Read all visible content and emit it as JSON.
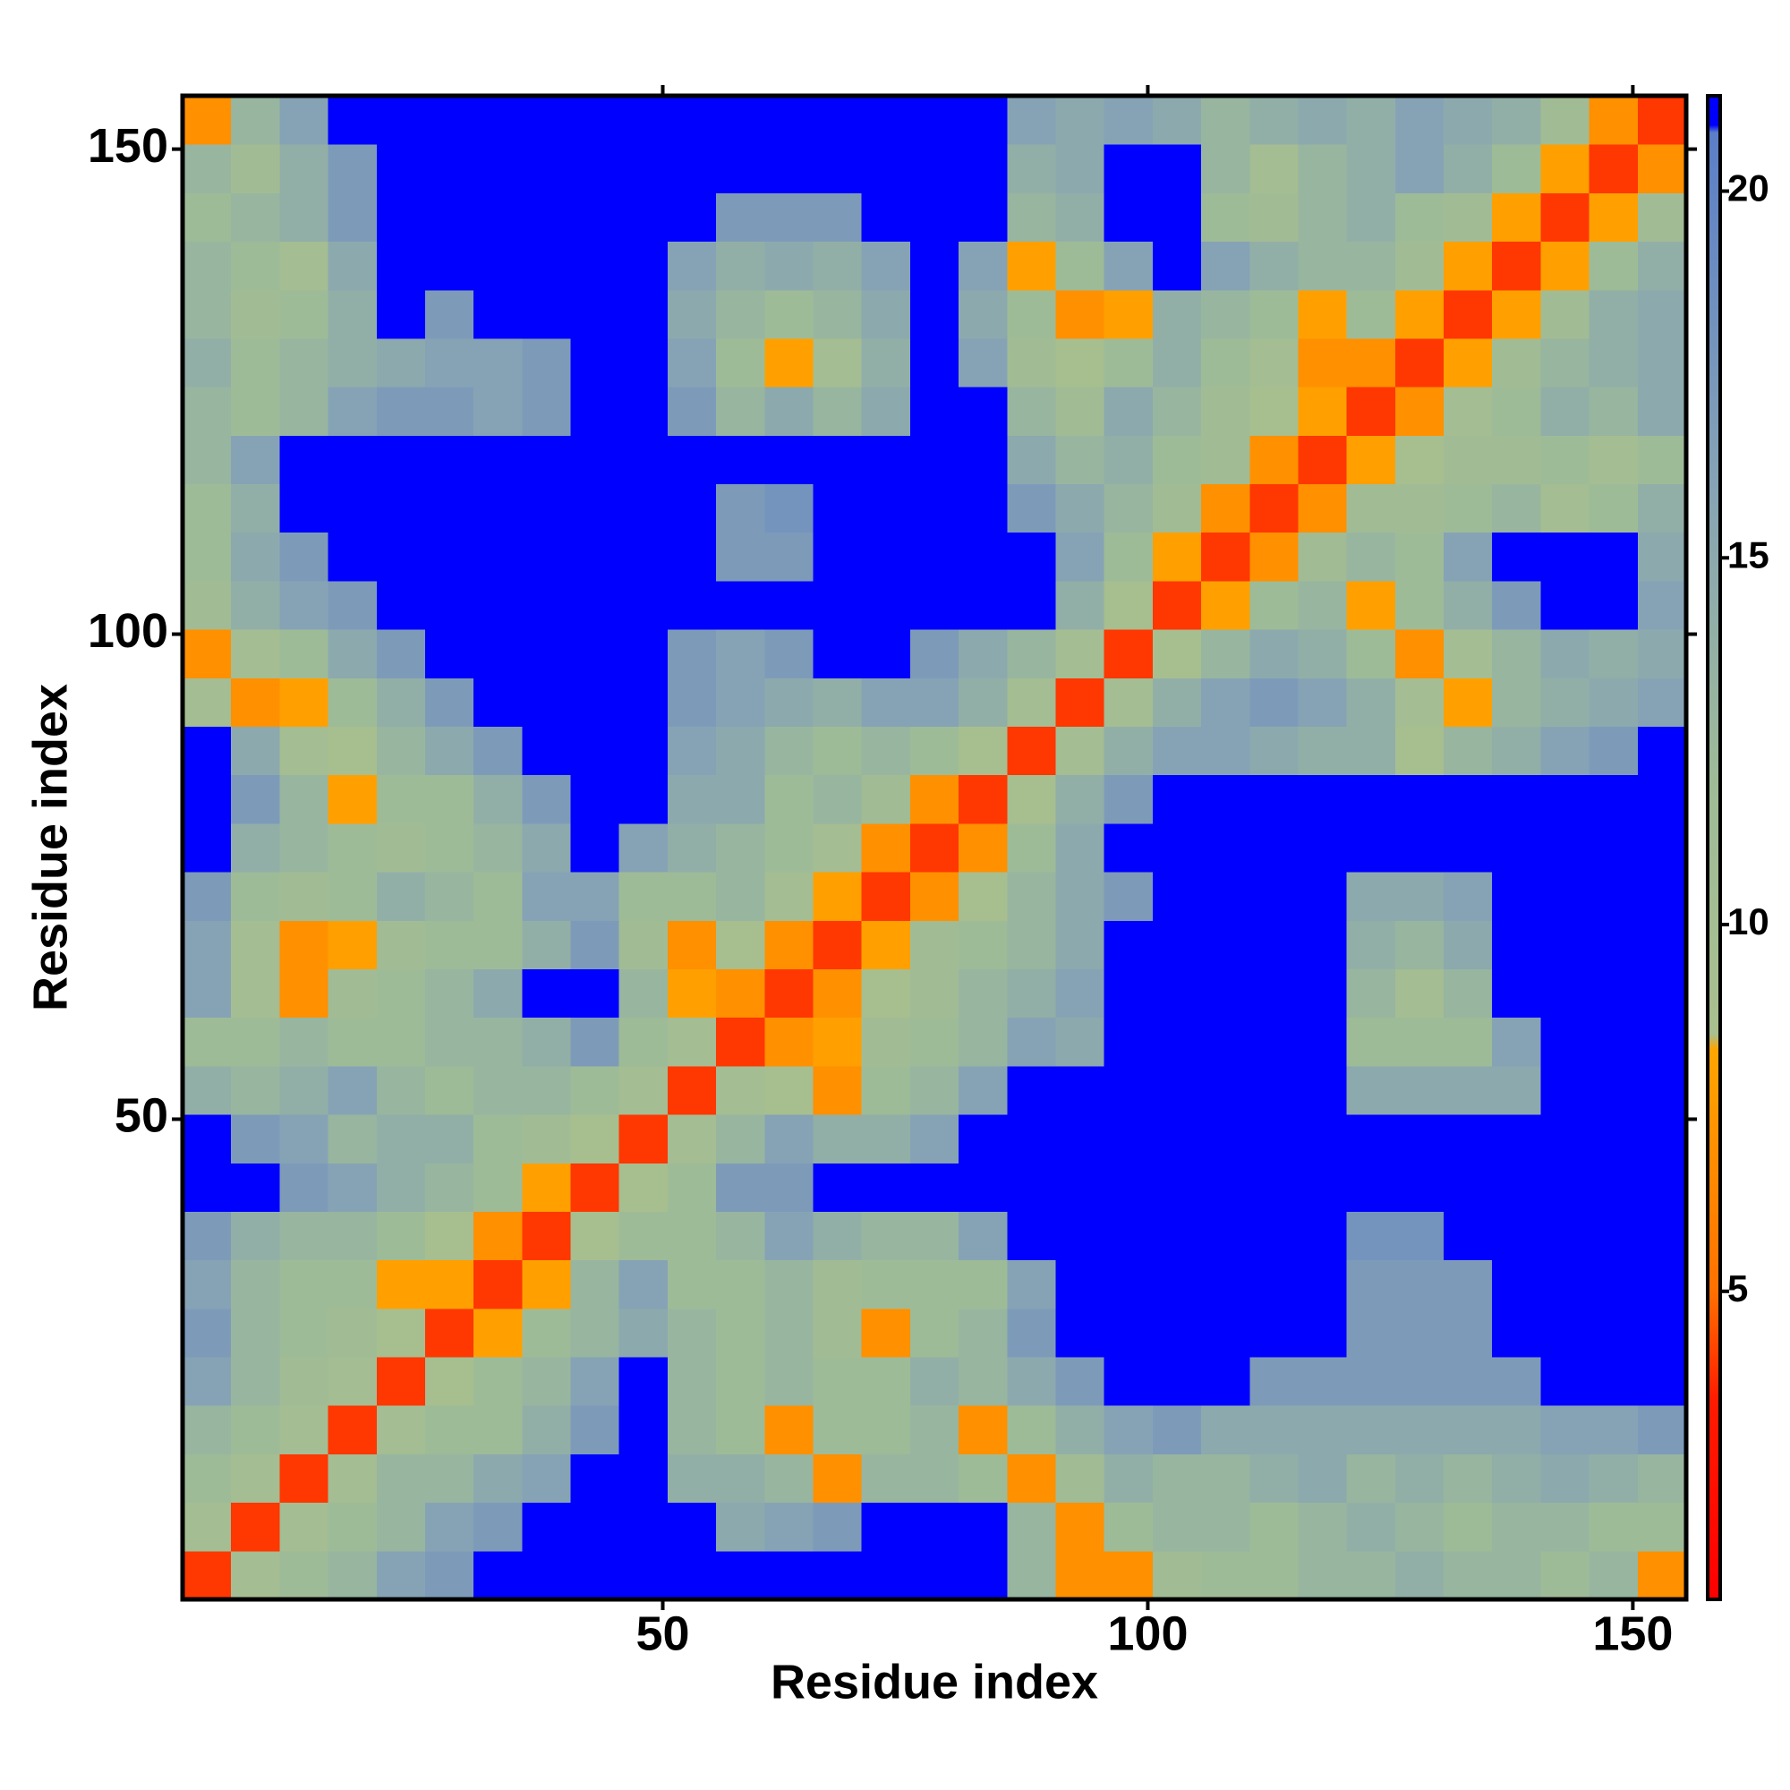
{
  "chart_data": {
    "type": "heatmap",
    "x_label": "Residue index",
    "y_label": "Residue index",
    "x": [
      3,
      8,
      13,
      18,
      23,
      28,
      33,
      38,
      43,
      48,
      53,
      58,
      63,
      68,
      73,
      78,
      83,
      88,
      93,
      98,
      103,
      108,
      113,
      118,
      123,
      128,
      133,
      138,
      143,
      148,
      153
    ],
    "y": [
      3,
      8,
      13,
      18,
      23,
      28,
      33,
      38,
      43,
      48,
      53,
      58,
      63,
      68,
      73,
      78,
      83,
      88,
      93,
      98,
      103,
      108,
      113,
      118,
      123,
      128,
      133,
      138,
      143,
      148,
      153
    ],
    "xlim": [
      0.5,
      155.5
    ],
    "ylim": [
      0.5,
      155.5
    ],
    "xticks": [
      50,
      100,
      150
    ],
    "yticks": [
      50,
      100,
      150
    ],
    "colorbar": {
      "zlim": [
        0.8,
        21.3
      ],
      "ticks": [
        5,
        10,
        15,
        20
      ],
      "colorscale": [
        [
          0.8,
          "#ff0000"
        ],
        [
          3.5,
          "#ff1a00"
        ],
        [
          5,
          "#ff7000"
        ],
        [
          8.3,
          "#ffa500"
        ],
        [
          8.5,
          "#a9bf8e"
        ],
        [
          12,
          "#9ebb98"
        ],
        [
          16,
          "#86a3b5"
        ],
        [
          20.8,
          "#5b7ec8"
        ],
        [
          20.9,
          "#0000ff"
        ],
        [
          21.3,
          "#0000ff"
        ]
      ]
    },
    "z": [
      [
        4,
        10,
        12,
        13,
        16,
        17,
        21,
        21,
        21,
        21,
        21,
        21,
        21,
        21,
        21,
        21,
        21,
        13,
        7,
        7,
        11,
        12,
        12,
        13,
        13,
        14,
        13,
        13,
        12,
        13,
        7
      ],
      [
        10,
        4,
        10,
        12,
        13,
        16,
        17,
        21,
        21,
        21,
        21,
        15,
        16,
        17,
        21,
        21,
        21,
        13,
        7,
        12,
        13,
        13,
        12,
        13,
        14,
        13,
        12,
        13,
        13,
        12,
        12
      ],
      [
        12,
        10,
        4,
        10,
        13,
        13,
        15,
        16,
        21,
        21,
        14,
        14,
        13,
        7,
        13,
        13,
        12,
        7,
        11,
        14,
        13,
        13,
        14,
        15,
        13,
        14,
        13,
        14,
        15,
        14,
        13
      ],
      [
        13,
        12,
        10,
        4,
        10,
        12,
        12,
        14,
        17,
        21,
        13,
        12,
        7,
        12,
        12,
        13,
        7,
        12,
        14,
        16,
        17,
        15,
        15,
        15,
        15,
        15,
        15,
        15,
        16,
        16,
        17
      ],
      [
        16,
        13,
        11,
        10,
        4,
        9,
        12,
        13,
        16,
        21,
        13,
        12,
        13,
        12,
        12,
        14,
        13,
        15,
        17,
        21,
        21,
        21,
        17,
        17,
        17,
        17,
        17,
        17,
        21,
        21,
        21
      ],
      [
        17,
        13,
        12,
        11,
        9,
        4,
        8,
        12,
        13,
        15,
        13,
        12,
        13,
        11,
        7,
        12,
        13,
        17,
        21,
        21,
        21,
        21,
        21,
        21,
        17,
        17,
        17,
        21,
        21,
        21,
        21
      ],
      [
        16,
        13,
        12,
        12,
        8,
        8,
        4,
        8,
        13,
        16,
        12,
        12,
        13,
        11,
        12,
        12,
        12,
        16,
        21,
        21,
        21,
        21,
        21,
        21,
        17,
        17,
        17,
        21,
        21,
        21,
        21
      ],
      [
        17,
        14,
        13,
        13,
        12,
        9,
        7,
        4,
        9,
        12,
        12,
        13,
        16,
        14,
        13,
        13,
        16,
        21,
        21,
        21,
        21,
        21,
        21,
        21,
        18,
        18,
        21,
        21,
        21,
        21,
        21
      ],
      [
        21,
        21,
        17,
        16,
        14,
        13,
        12,
        8,
        4,
        9,
        12,
        17,
        17,
        21,
        21,
        21,
        21,
        21,
        21,
        21,
        21,
        21,
        21,
        21,
        21,
        21,
        21,
        21,
        21,
        21,
        21
      ],
      [
        21,
        17,
        16,
        13,
        14,
        14,
        12,
        11,
        9,
        4,
        10,
        13,
        16,
        14,
        14,
        16,
        21,
        21,
        21,
        21,
        21,
        21,
        21,
        21,
        21,
        21,
        21,
        21,
        21,
        21,
        21
      ],
      [
        14,
        13,
        14,
        16,
        13,
        12,
        13,
        13,
        12,
        10,
        4,
        10,
        9,
        7,
        12,
        13,
        16,
        21,
        21,
        21,
        21,
        21,
        21,
        21,
        15,
        15,
        15,
        15,
        21,
        21,
        21
      ],
      [
        12,
        12,
        13,
        12,
        12,
        13,
        13,
        14,
        17,
        12,
        10,
        4,
        7,
        8,
        11,
        12,
        13,
        16,
        15,
        21,
        21,
        21,
        21,
        21,
        12,
        12,
        12,
        16,
        21,
        21,
        21
      ],
      [
        16,
        10,
        7,
        11,
        12,
        13,
        15,
        21,
        21,
        13,
        8,
        7,
        4,
        7,
        9,
        11,
        13,
        14,
        16,
        21,
        21,
        21,
        21,
        21,
        13,
        10,
        13,
        21,
        21,
        21,
        21
      ],
      [
        16,
        10,
        7,
        8,
        11,
        12,
        12,
        14,
        17,
        11,
        7,
        9,
        7,
        4,
        8,
        11,
        12,
        13,
        15,
        21,
        21,
        21,
        21,
        21,
        14,
        13,
        15,
        21,
        21,
        21,
        21
      ],
      [
        17,
        12,
        11,
        12,
        14,
        13,
        12,
        16,
        16,
        12,
        12,
        13,
        10,
        8,
        4,
        7,
        9,
        13,
        15,
        17,
        21,
        21,
        21,
        21,
        15,
        15,
        16,
        21,
        21,
        21,
        21
      ],
      [
        21,
        14,
        13,
        12,
        11,
        12,
        13,
        15,
        21,
        16,
        14,
        13,
        12,
        10,
        7,
        4,
        7,
        12,
        15,
        21,
        21,
        21,
        21,
        21,
        21,
        21,
        21,
        21,
        21,
        21,
        21
      ],
      [
        21,
        17,
        13,
        8,
        12,
        12,
        14,
        17,
        21,
        21,
        15,
        15,
        12,
        13,
        11,
        7,
        4,
        9,
        14,
        17,
        21,
        21,
        21,
        21,
        21,
        21,
        21,
        21,
        21,
        21,
        21
      ],
      [
        21,
        15,
        10,
        9,
        13,
        15,
        17,
        21,
        21,
        21,
        16,
        15,
        13,
        12,
        13,
        12,
        9,
        4,
        10,
        14,
        16,
        16,
        15,
        14,
        14,
        9,
        13,
        14,
        16,
        17,
        21
      ],
      [
        10,
        7,
        8,
        12,
        14,
        17,
        21,
        21,
        21,
        21,
        17,
        16,
        15,
        14,
        16,
        16,
        14,
        10,
        4,
        10,
        14,
        16,
        17,
        16,
        14,
        10,
        8,
        13,
        14,
        15,
        16
      ],
      [
        7,
        10,
        12,
        15,
        17,
        21,
        21,
        21,
        21,
        21,
        17,
        16,
        17,
        21,
        21,
        17,
        15,
        13,
        10,
        4,
        9,
        13,
        15,
        14,
        12,
        7,
        10,
        13,
        15,
        14,
        15
      ],
      [
        11,
        14,
        16,
        17,
        21,
        21,
        21,
        21,
        21,
        21,
        21,
        21,
        21,
        21,
        21,
        21,
        21,
        21,
        14,
        9,
        4,
        8,
        12,
        13,
        8,
        12,
        14,
        17,
        21,
        21,
        16
      ],
      [
        12,
        15,
        17,
        21,
        21,
        21,
        21,
        21,
        21,
        21,
        21,
        17,
        17,
        21,
        21,
        21,
        21,
        21,
        16,
        12,
        8,
        4,
        7,
        11,
        13,
        12,
        16,
        21,
        21,
        21,
        15
      ],
      [
        12,
        14,
        21,
        21,
        21,
        21,
        21,
        21,
        21,
        21,
        21,
        17,
        18,
        21,
        21,
        21,
        21,
        17,
        15,
        13,
        11,
        7,
        4,
        7,
        11,
        11,
        12,
        13,
        10,
        12,
        14
      ],
      [
        13,
        16,
        21,
        21,
        21,
        21,
        21,
        21,
        21,
        21,
        21,
        21,
        21,
        21,
        21,
        21,
        21,
        15,
        13,
        14,
        12,
        11,
        7,
        4,
        8,
        9,
        11,
        11,
        12,
        10,
        12
      ],
      [
        13,
        12,
        13,
        16,
        17,
        17,
        16,
        17,
        21,
        21,
        17,
        13,
        15,
        13,
        15,
        21,
        21,
        13,
        11,
        15,
        13,
        11,
        9,
        8,
        4,
        7,
        10,
        12,
        14,
        13,
        15
      ],
      [
        14,
        12,
        13,
        14,
        15,
        16,
        16,
        17,
        21,
        21,
        16,
        12,
        8,
        10,
        14,
        21,
        16,
        11,
        9,
        12,
        14,
        12,
        10,
        7,
        7,
        4,
        8,
        11,
        13,
        14,
        15
      ],
      [
        13,
        11,
        12,
        14,
        21,
        17,
        21,
        21,
        21,
        21,
        15,
        13,
        12,
        13,
        15,
        21,
        15,
        12,
        7,
        8,
        14,
        13,
        12,
        8,
        12,
        8,
        4,
        8,
        11,
        14,
        15
      ],
      [
        13,
        12,
        10,
        15,
        21,
        21,
        21,
        21,
        21,
        21,
        16,
        14,
        15,
        14,
        16,
        21,
        16,
        8,
        12,
        16,
        21,
        16,
        14,
        13,
        13,
        11,
        8,
        4,
        8,
        12,
        14
      ],
      [
        12,
        13,
        14,
        17,
        21,
        21,
        21,
        21,
        21,
        21,
        21,
        17,
        17,
        17,
        21,
        21,
        21,
        13,
        14,
        21,
        21,
        12,
        11,
        13,
        14,
        12,
        11,
        8,
        4,
        8,
        11
      ],
      [
        13,
        11,
        14,
        17,
        21,
        21,
        21,
        21,
        21,
        21,
        21,
        21,
        21,
        21,
        21,
        21,
        21,
        14,
        15,
        21,
        21,
        13,
        10,
        13,
        14,
        16,
        14,
        12,
        8,
        4,
        7
      ],
      [
        7,
        13,
        16,
        21,
        21,
        21,
        21,
        21,
        21,
        21,
        21,
        21,
        21,
        21,
        21,
        21,
        21,
        16,
        15,
        16,
        15,
        13,
        14,
        15,
        14,
        16,
        15,
        14,
        11,
        7,
        4
      ]
    ]
  }
}
